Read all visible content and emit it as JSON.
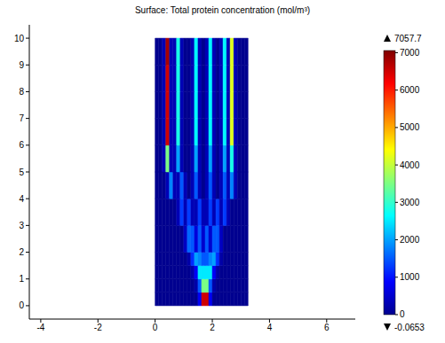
{
  "chart_data": {
    "type": "heatmap",
    "title": "Surface: Total protein concentration (mol/m³)",
    "xlim": [
      -4.4,
      7
    ],
    "xticks": [
      -4,
      -2,
      0,
      2,
      4,
      6
    ],
    "ylim": [
      -0.5,
      10.5
    ],
    "yticks": [
      0,
      1,
      2,
      3,
      4,
      5,
      6,
      7,
      8,
      9,
      10
    ],
    "x_edges": [
      0,
      0.125,
      0.25,
      0.375,
      0.5,
      0.625,
      0.75,
      0.875,
      1,
      1.125,
      1.25,
      1.375,
      1.5,
      1.625,
      1.75,
      1.875,
      2,
      2.125,
      2.25,
      2.375,
      2.5,
      2.625,
      2.75,
      2.875,
      3,
      3.125,
      3.25
    ],
    "y_edges": [
      0,
      0.5,
      1,
      1.5,
      2,
      3,
      4,
      5,
      6,
      7,
      8,
      9,
      10
    ],
    "z": [
      [
        0,
        0,
        0,
        0,
        0,
        0,
        0,
        0,
        0,
        0,
        0,
        0,
        800,
        6500,
        6500,
        800,
        0,
        0,
        0,
        0,
        0,
        0,
        0,
        0,
        0,
        0
      ],
      [
        0,
        0,
        0,
        0,
        0,
        0,
        0,
        0,
        0,
        0,
        0,
        200,
        1500,
        3500,
        3500,
        1500,
        200,
        0,
        0,
        0,
        0,
        0,
        0,
        0,
        0,
        0
      ],
      [
        0,
        0,
        0,
        0,
        0,
        0,
        0,
        0,
        0,
        0,
        200,
        800,
        2500,
        2500,
        2500,
        2500,
        800,
        200,
        0,
        0,
        0,
        0,
        0,
        0,
        0,
        0
      ],
      [
        0,
        0,
        0,
        0,
        0,
        0,
        0,
        0,
        0,
        200,
        1200,
        2000,
        1800,
        1500,
        1500,
        1800,
        2000,
        1200,
        200,
        0,
        0,
        0,
        0,
        0,
        0,
        0
      ],
      [
        0,
        0,
        0,
        0,
        0,
        0,
        0,
        0,
        400,
        1600,
        1500,
        600,
        1500,
        500,
        1500,
        500,
        1500,
        1500,
        400,
        0,
        0,
        0,
        0,
        0,
        0,
        0
      ],
      [
        0,
        0,
        0,
        0,
        0,
        0,
        300,
        1300,
        300,
        1300,
        300,
        300,
        1300,
        300,
        300,
        1300,
        300,
        1300,
        300,
        1300,
        300,
        0,
        0,
        0,
        0,
        0
      ],
      [
        0,
        0,
        0,
        300,
        1800,
        300,
        300,
        1500,
        300,
        0,
        300,
        1500,
        300,
        0,
        300,
        1500,
        300,
        0,
        300,
        1500,
        300,
        1800,
        300,
        0,
        0,
        0
      ],
      [
        0,
        0,
        300,
        3500,
        300,
        300,
        2000,
        300,
        0,
        0,
        300,
        2000,
        300,
        0,
        300,
        2000,
        300,
        0,
        300,
        2000,
        300,
        2800,
        300,
        0,
        0,
        0
      ],
      [
        0,
        0,
        300,
        6500,
        300,
        300,
        2800,
        300,
        0,
        0,
        300,
        2600,
        300,
        0,
        300,
        2600,
        300,
        0,
        300,
        2600,
        300,
        4200,
        300,
        0,
        0,
        0
      ],
      [
        0,
        0,
        300,
        6500,
        300,
        300,
        2800,
        300,
        0,
        0,
        300,
        2600,
        300,
        0,
        300,
        2600,
        300,
        0,
        300,
        2600,
        300,
        4200,
        300,
        0,
        0,
        0
      ],
      [
        0,
        0,
        300,
        6500,
        300,
        300,
        2800,
        300,
        0,
        0,
        300,
        2600,
        300,
        0,
        300,
        2600,
        300,
        0,
        300,
        2600,
        300,
        4200,
        300,
        0,
        0,
        0
      ],
      [
        0,
        0,
        300,
        6800,
        300,
        300,
        2800,
        300,
        0,
        0,
        300,
        2600,
        300,
        0,
        300,
        2600,
        300,
        0,
        300,
        2600,
        300,
        4200,
        300,
        0,
        0,
        0
      ]
    ],
    "zlim": [
      -0.0653,
      7057.7
    ],
    "zticks": [
      0,
      1000,
      2000,
      3000,
      4000,
      5000,
      6000,
      7000
    ]
  }
}
